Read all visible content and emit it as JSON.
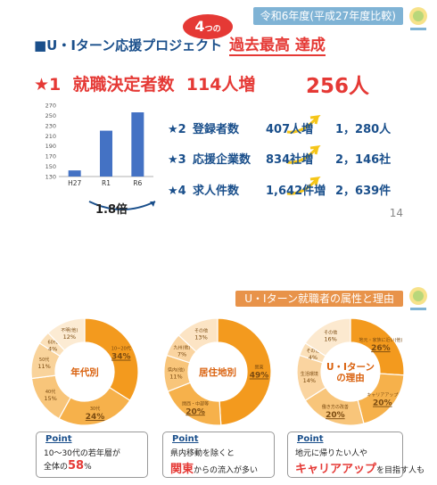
{
  "header": {
    "period": "令和6年度(平成27年度比較)"
  },
  "project": {
    "title": "■U・Iターン応援プロジェクト",
    "badge_num": "4",
    "badge_suffix": "つの",
    "record": "過去最高 達成"
  },
  "headline": {
    "rank": "★1",
    "label": "就職決定者数",
    "increase": "114人増",
    "total": "256人"
  },
  "chart_data": {
    "type": "bar",
    "categories": [
      "H27",
      "R1",
      "R6"
    ],
    "values": [
      142,
      220,
      256
    ],
    "ylim": [
      130,
      270
    ],
    "yticks": [
      "270",
      "250",
      "230",
      "210",
      "190",
      "170",
      "150",
      "130"
    ],
    "color": "#4472c4"
  },
  "ratio": "1.8倍",
  "stats": [
    {
      "rank": "★2",
      "label": "登録者数",
      "increase": "407人増",
      "total": "1，280人"
    },
    {
      "rank": "★3",
      "label": "応援企業数",
      "increase": "834社増",
      "total": "2，146社"
    },
    {
      "rank": "★4",
      "label": "求人件数",
      "increase": "1,642件増",
      "total": "2，639件"
    }
  ],
  "page_number": "14",
  "section": {
    "title": "U・Iターン就職者の属性と理由"
  },
  "donuts": [
    {
      "center": "年代別",
      "segments": [
        {
          "label": "10~20代",
          "pct": "34%",
          "value": 34,
          "color": "#f39a1e"
        },
        {
          "label": "30代",
          "pct": "24%",
          "value": 24,
          "color": "#f6b14b"
        },
        {
          "label": "40代",
          "pct": "15%",
          "value": 15,
          "color": "#f8c57a"
        },
        {
          "label": "50代",
          "pct": "11%",
          "value": 11,
          "color": "#f9d39b"
        },
        {
          "label": "60代",
          "pct": "4%",
          "value": 4,
          "color": "#fbe0b9"
        },
        {
          "label": "不明(他)",
          "pct": "12%",
          "value": 12,
          "color": "#fcebd3"
        }
      ],
      "point": {
        "tag": "Point",
        "line1": "10～30代の若年層が",
        "line2_pre": "全体の",
        "line2_em": "58",
        "line2_post": "%"
      }
    },
    {
      "center": "居住地別",
      "segments": [
        {
          "label": "関東",
          "pct": "49%",
          "value": 49,
          "color": "#f39a1e"
        },
        {
          "label": "関西・中部等",
          "pct": "20%",
          "value": 20,
          "color": "#f6b14b"
        },
        {
          "label": "県内(他)",
          "pct": "11%",
          "value": 11,
          "color": "#f8c57a"
        },
        {
          "label": "九州(他)",
          "pct": "7%",
          "value": 7,
          "color": "#fad4a0"
        },
        {
          "label": "その他",
          "pct": "13%",
          "value": 13,
          "color": "#fce4c4"
        }
      ],
      "point": {
        "tag": "Point",
        "line1": "県内移動を除くと",
        "line2_pre": "",
        "line2_em": "関東",
        "line2_post": "からの流入が多い"
      }
    },
    {
      "center": "U・Iターン\nの理由",
      "segments": [
        {
          "label": "地元・家族に近い(他)",
          "pct": "26%",
          "value": 26,
          "color": "#f39a1e"
        },
        {
          "label": "キャリアアップ",
          "pct": "20%",
          "value": 20,
          "color": "#f6b14b"
        },
        {
          "label": "働き方の改善",
          "pct": "20%",
          "value": 20,
          "color": "#f8c57a"
        },
        {
          "label": "生活環境",
          "pct": "14%",
          "value": 14,
          "color": "#fad4a0"
        },
        {
          "label": "その他",
          "pct": "4%",
          "value": 4,
          "color": "#fbe0b9"
        },
        {
          "label": "その他",
          "pct": "16%",
          "value": 16,
          "color": "#fce9cf"
        }
      ],
      "point": {
        "tag": "Point",
        "line1": "地元に帰りたい人や",
        "line2_pre": "",
        "line2_em": "キャリアアップ",
        "line2_post": "を目指す人も"
      }
    }
  ]
}
